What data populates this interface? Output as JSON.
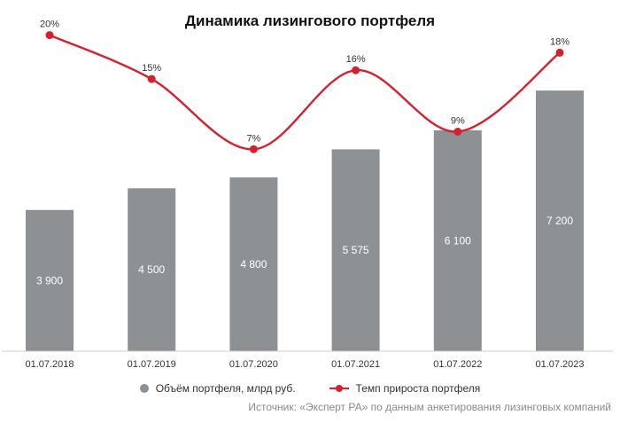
{
  "colors": {
    "bar": "#8e9193",
    "line": "#d7202e",
    "axis": "#cccccc",
    "text": "#333333"
  },
  "chart_data": {
    "type": "bar+line",
    "title": "Динамика лизингового портфеля",
    "categories": [
      "01.07.2018",
      "01.07.2019",
      "01.07.2020",
      "01.07.2021",
      "01.07.2022",
      "01.07.2023"
    ],
    "series": [
      {
        "name": "Объём портфеля, млрд руб.",
        "type": "bar",
        "values": [
          3900,
          4500,
          4800,
          5575,
          6100,
          7200
        ],
        "labels": [
          "3 900",
          "4 500",
          "4 800",
          "5 575",
          "6 100",
          "7 200"
        ]
      },
      {
        "name": "Темп прироста портфеля",
        "type": "line",
        "values": [
          20,
          15,
          7,
          16,
          9,
          18
        ],
        "labels": [
          "20%",
          "15%",
          "7%",
          "16%",
          "9%",
          "18%"
        ]
      }
    ],
    "bar_ylim": [
      0,
      9700
    ],
    "line_ylim": [
      -16,
      24
    ],
    "grid": false,
    "legend_position": "bottom-center"
  },
  "source": "Источник: «Эксперт РА» по данным анкетирования лизинговых компаний"
}
